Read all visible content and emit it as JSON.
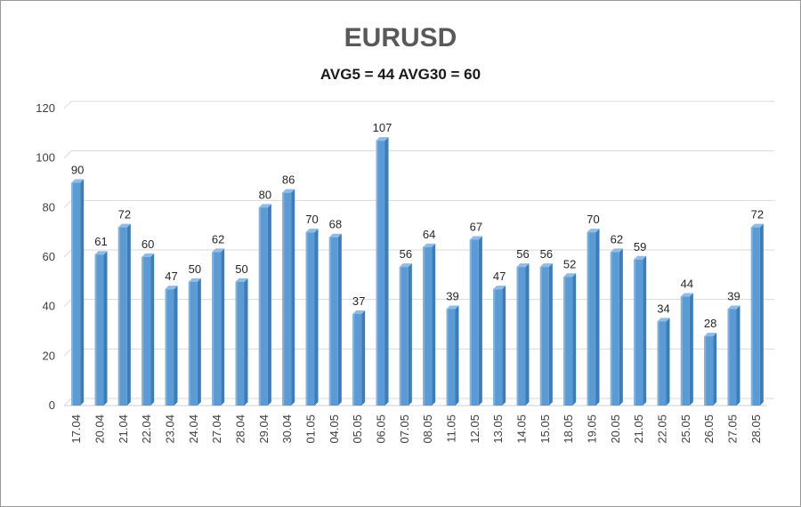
{
  "chart_data": {
    "type": "bar",
    "title": "EURUSD",
    "subtitle": "AVG5 = 44 AVG30 = 60",
    "xlabel": "",
    "ylabel": "",
    "ylim": [
      0,
      120
    ],
    "yticks": [
      0,
      20,
      40,
      60,
      80,
      100,
      120
    ],
    "grid": true,
    "bar_color": "#5b9bd5",
    "categories": [
      "17.04",
      "20.04",
      "21.04",
      "22.04",
      "23.04",
      "24.04",
      "27.04",
      "28.04",
      "29.04",
      "30.04",
      "01.05",
      "04.05",
      "05.05",
      "06.05",
      "07.05",
      "08.05",
      "11.05",
      "12.05",
      "13.05",
      "14.05",
      "15.05",
      "18.05",
      "19.05",
      "20.05",
      "21.05",
      "22.05",
      "25.05",
      "26.05",
      "27.05",
      "28.05"
    ],
    "values": [
      90,
      61,
      72,
      60,
      47,
      50,
      62,
      50,
      80,
      86,
      70,
      68,
      37,
      107,
      56,
      64,
      39,
      67,
      47,
      56,
      56,
      52,
      70,
      62,
      59,
      34,
      44,
      28,
      39,
      72
    ]
  }
}
